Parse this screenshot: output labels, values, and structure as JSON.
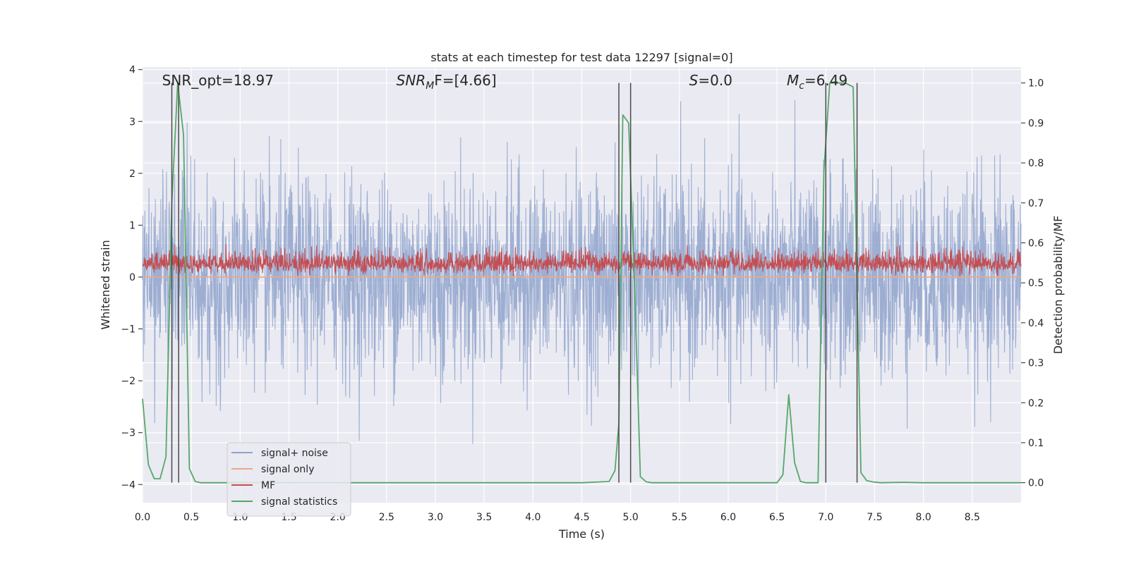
{
  "chart_data": {
    "type": "line",
    "title": "stats at each timestep for test data 12297 [signal=0]",
    "xlabel": "Time (s)",
    "ylabel": "Whitened strain",
    "y2label": "Detection probability/MF",
    "xlim": [
      0,
      9.0
    ],
    "ylim": [
      -4.35,
      4.05
    ],
    "y2lim": [
      -0.05,
      1.04
    ],
    "xticks": [
      "0.0",
      "0.5",
      "1.0",
      "1.5",
      "2.0",
      "2.5",
      "3.0",
      "3.5",
      "4.0",
      "4.5",
      "5.0",
      "5.5",
      "6.0",
      "6.5",
      "7.0",
      "7.5",
      "8.0",
      "8.5"
    ],
    "yticks": [
      "−4",
      "−3",
      "−2",
      "−1",
      "0",
      "1",
      "2",
      "3",
      "4"
    ],
    "y2ticks": [
      "0.0",
      "0.1",
      "0.2",
      "0.3",
      "0.4",
      "0.5",
      "0.6",
      "0.7",
      "0.8",
      "0.9",
      "1.0"
    ],
    "grid": true,
    "legend_position": "lower-left",
    "annotations": [
      {
        "text": "SNR_opt=18.97",
        "x": 0.2
      },
      {
        "text": "SNR",
        "sub": "M",
        "tail": "F=[4.66]",
        "x": 2.6,
        "italic": true
      },
      {
        "text": "S",
        "tail": "=0.0",
        "x": 5.6,
        "italic": true
      },
      {
        "text": "M",
        "sub": "c",
        "tail": "=6.49",
        "x": 6.6,
        "italic": true
      }
    ],
    "vertical_lines": [
      {
        "x": 0.3,
        "y_top": 1.0,
        "y_bottom": 0.0
      },
      {
        "x": 0.37,
        "y_top": 1.0,
        "y_bottom": 0.0
      },
      {
        "x": 4.88,
        "y_top": 1.0,
        "y_bottom": 0.0
      },
      {
        "x": 5.0,
        "y_top": 1.0,
        "y_bottom": 0.0
      },
      {
        "x": 7.0,
        "y_top": 1.0,
        "y_bottom": 0.0
      },
      {
        "x": 7.32,
        "y_top": 1.0,
        "y_bottom": 0.0
      }
    ],
    "series": [
      {
        "name": "signal+ noise",
        "color": "#8fa3cc",
        "axis": "left",
        "kind": "noise",
        "envelope": {
          "std": 0.95,
          "min": -3.7,
          "max": 3.6
        }
      },
      {
        "name": "signal only",
        "color": "#e8a98a",
        "axis": "left",
        "kind": "flat",
        "values": [
          0.0
        ]
      },
      {
        "name": "MF",
        "color": "#c44e52",
        "axis": "left",
        "kind": "noise",
        "envelope": {
          "baseline": 0.25,
          "std": 0.13,
          "min": 0.0,
          "max": 0.95
        }
      },
      {
        "name": "signal statistics",
        "color": "#55a868",
        "axis": "right",
        "x": [
          0.0,
          0.06,
          0.12,
          0.18,
          0.24,
          0.3,
          0.36,
          0.42,
          0.48,
          0.54,
          0.6,
          0.7,
          0.8,
          1.0,
          2.0,
          3.0,
          4.0,
          4.5,
          4.78,
          4.84,
          4.88,
          4.92,
          4.98,
          5.04,
          5.1,
          5.16,
          5.22,
          5.3,
          5.5,
          6.0,
          6.5,
          6.56,
          6.62,
          6.68,
          6.74,
          6.8,
          6.86,
          6.92,
          6.98,
          7.04,
          7.1,
          7.2,
          7.28,
          7.32,
          7.36,
          7.42,
          7.48,
          7.56,
          7.8,
          8.0,
          9.0
        ],
        "values": [
          0.21,
          0.045,
          0.01,
          0.01,
          0.065,
          0.7,
          1.0,
          0.87,
          0.035,
          0.003,
          0.0,
          0.0,
          0.0,
          0.0,
          0.0,
          0.0,
          0.0,
          0.0,
          0.003,
          0.03,
          0.15,
          0.92,
          0.9,
          0.5,
          0.015,
          0.002,
          0.0,
          0.0,
          0.0,
          0.0,
          0.0,
          0.02,
          0.22,
          0.05,
          0.003,
          0.0,
          0.0,
          0.0,
          0.78,
          1.0,
          1.0,
          1.0,
          0.99,
          0.5,
          0.025,
          0.005,
          0.002,
          0.0,
          0.001,
          0.0,
          0.0
        ]
      }
    ]
  }
}
